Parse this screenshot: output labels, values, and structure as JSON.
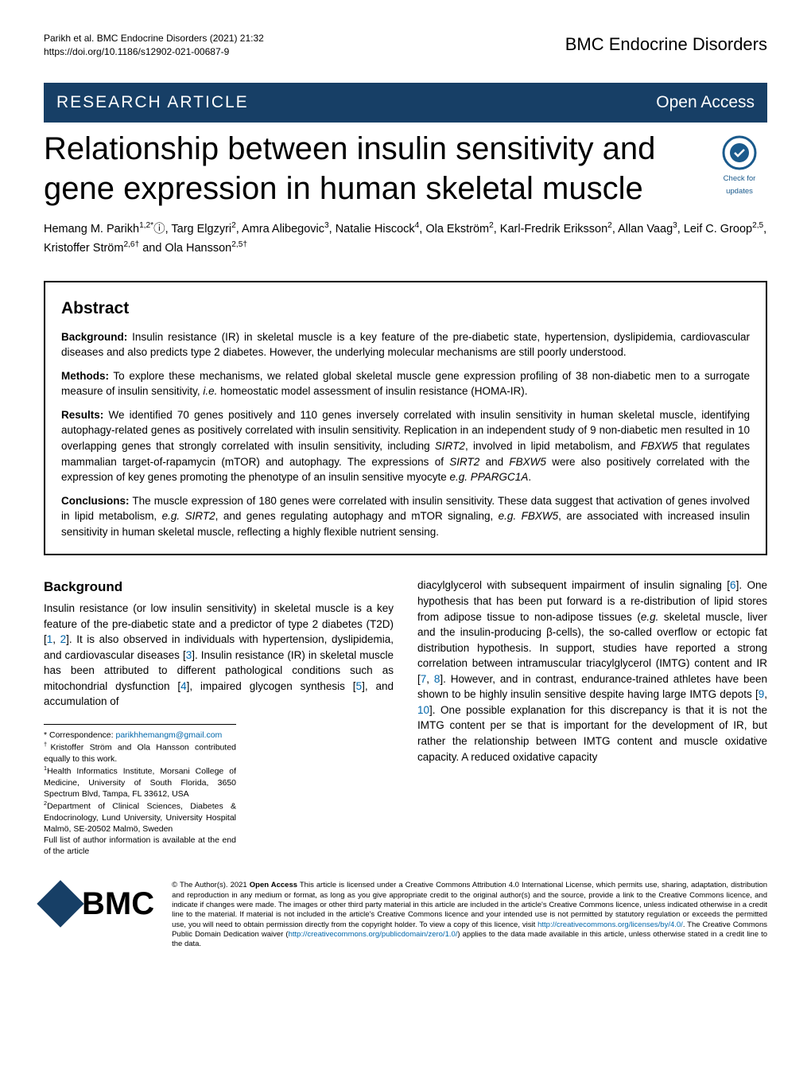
{
  "header": {
    "citation_line1": "Parikh et al. BMC Endocrine Disorders        (2021) 21:32",
    "citation_line2": "https://doi.org/10.1186/s12902-021-00687-9",
    "journal": "BMC Endocrine Disorders"
  },
  "banner": {
    "left": "RESEARCH ARTICLE",
    "right": "Open Access"
  },
  "title": "Relationship between insulin sensitivity and gene expression in human skeletal muscle",
  "check_badge": {
    "line1": "Check for",
    "line2": "updates"
  },
  "authors": "Hemang M. Parikh<sup>1,2*</sup>ⓘ, Targ Elgzyri<sup>2</sup>, Amra Alibegovic<sup>3</sup>, Natalie Hiscock<sup>4</sup>, Ola Ekström<sup>2</sup>, Karl-Fredrik Eriksson<sup>2</sup>, Allan Vaag<sup>3</sup>, Leif C. Groop<sup>2,5</sup>, Kristoffer Ström<sup>2,6†</sup> and Ola Hansson<sup>2,5†</sup>",
  "abstract": {
    "heading": "Abstract",
    "background_label": "Background:",
    "background_text": " Insulin resistance (IR) in skeletal muscle is a key feature of the pre-diabetic state, hypertension, dyslipidemia, cardiovascular diseases and also predicts type 2 diabetes. However, the underlying molecular mechanisms are still poorly understood.",
    "methods_label": "Methods:",
    "methods_text": " To explore these mechanisms, we related global skeletal muscle gene expression profiling of 38 non-diabetic men to a surrogate measure of insulin sensitivity, <span class=\"italic\">i.e.</span> homeostatic model assessment of insulin resistance (HOMA-IR).",
    "results_label": "Results:",
    "results_text": " We identified 70 genes positively and 110 genes inversely correlated with insulin sensitivity in human skeletal muscle, identifying autophagy-related genes as positively correlated with insulin sensitivity. Replication in an independent study of 9 non-diabetic men resulted in 10 overlapping genes that strongly correlated with insulin sensitivity, including <span class=\"italic\">SIRT2</span>, involved in lipid metabolism, and <span class=\"italic\">FBXW5</span> that regulates mammalian target-of-rapamycin (mTOR) and autophagy. The expressions of <span class=\"italic\">SIRT2</span> and <span class=\"italic\">FBXW5</span> were also positively correlated with the expression of key genes promoting the phenotype of an insulin sensitive myocyte <span class=\"italic\">e.g. PPARGC1A</span>.",
    "conclusions_label": "Conclusions:",
    "conclusions_text": " The muscle expression of 180 genes were correlated with insulin sensitivity. These data suggest that activation of genes involved in lipid metabolism, <span class=\"italic\">e.g. SIRT2</span>, and genes regulating autophagy and mTOR signaling, <span class=\"italic\">e.g. FBXW5</span>, are associated with increased insulin sensitivity in human skeletal muscle, reflecting a highly flexible nutrient sensing."
  },
  "body": {
    "background_heading": "Background",
    "left_col": "Insulin resistance (or low insulin sensitivity) in skeletal muscle is a key feature of the pre-diabetic state and a predictor of type 2 diabetes (T2D) [<span class=\"ref-link\">1</span>, <span class=\"ref-link\">2</span>]. It is also observed in individuals with hypertension, dyslipidemia, and cardiovascular diseases [<span class=\"ref-link\">3</span>]. Insulin resistance (IR) in skeletal muscle has been attributed to different pathological conditions such as mitochondrial dysfunction [<span class=\"ref-link\">4</span>], impaired glycogen synthesis [<span class=\"ref-link\">5</span>], and accumulation of",
    "right_col": "diacylglycerol with subsequent impairment of insulin signaling [<span class=\"ref-link\">6</span>]. One hypothesis that has been put forward is a re-distribution of lipid stores from adipose tissue to non-adipose tissues (<span class=\"italic\">e.g.</span> skeletal muscle, liver and the insulin-producing β-cells), the so-called overflow or ectopic fat distribution hypothesis. In support, studies have reported a strong correlation between intramuscular triacylglycerol (IMTG) content and IR [<span class=\"ref-link\">7</span>, <span class=\"ref-link\">8</span>]. However, and in contrast, endurance-trained athletes have been shown to be highly insulin sensitive despite having large IMTG depots [<span class=\"ref-link\">9</span>, <span class=\"ref-link\">10</span>]. One possible explanation for this discrepancy is that it is not the IMTG content per se that is important for the development of IR, but rather the relationship between IMTG content and muscle oxidative capacity. A reduced oxidative capacity"
  },
  "footnotes": {
    "correspondence_label": "* Correspondence: ",
    "email": "parikhhemangm@gmail.com",
    "equal": "<sup>†</sup>Kristoffer Ström and Ola Hansson contributed equally to this work.",
    "affil1": "<sup>1</sup>Health Informatics Institute, Morsani College of Medicine, University of South Florida, 3650 Spectrum Blvd, Tampa, FL 33612, USA",
    "affil2": "<sup>2</sup>Department of Clinical Sciences, Diabetes & Endocrinology, Lund University, University Hospital Malmö, SE-20502 Malmö, Sweden",
    "full_list": "Full list of author information is available at the end of the article"
  },
  "footer": {
    "bmc": "BMC",
    "license": "© The Author(s). 2021 <b>Open Access</b> This article is licensed under a Creative Commons Attribution 4.0 International License, which permits use, sharing, adaptation, distribution and reproduction in any medium or format, as long as you give appropriate credit to the original author(s) and the source, provide a link to the Creative Commons licence, and indicate if changes were made. The images or other third party material in this article are included in the article's Creative Commons licence, unless indicated otherwise in a credit line to the material. If material is not included in the article's Creative Commons licence and your intended use is not permitted by statutory regulation or exceeds the permitted use, you will need to obtain permission directly from the copyright holder. To view a copy of this licence, visit <span class=\"ref-link\">http://creativecommons.org/licenses/by/4.0/</span>. The Creative Commons Public Domain Dedication waiver (<span class=\"ref-link\">http://creativecommons.org/publicdomain/zero/1.0/</span>) applies to the data made available in this article, unless otherwise stated in a credit line to the data."
  },
  "colors": {
    "banner_bg": "#173f66",
    "banner_text": "#ffffff",
    "link": "#0066aa",
    "text": "#000000",
    "bg": "#ffffff"
  }
}
